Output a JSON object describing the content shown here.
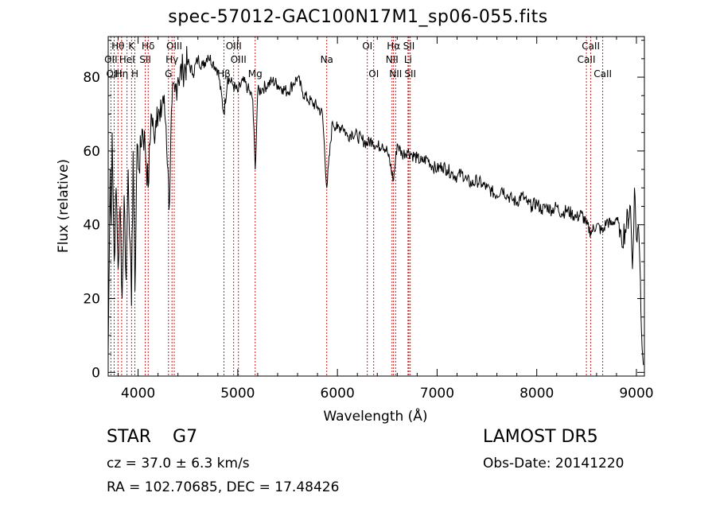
{
  "header": {
    "title": "spec-57012-GAC100N17M1_sp06-055.fits",
    "object_class": "STAR    G7",
    "survey": "LAMOST  DR5",
    "cz": "cz = 37.0 ± 6.3 km/s",
    "obs_date": "Obs-Date: 20141220",
    "radec": "RA = 102.70685, DEC =  17.48426"
  },
  "chart_data": {
    "type": "line",
    "title": "spec-57012-GAC100N17M1_sp06-055.fits",
    "xlabel": "Wavelength (Å)",
    "ylabel": "Flux (relative)",
    "xlim": [
      3700,
      9080
    ],
    "ylim": [
      -1,
      91
    ],
    "xticks": [
      4000,
      5000,
      6000,
      7000,
      8000,
      9000
    ],
    "yticks": [
      0,
      20,
      40,
      60,
      80
    ],
    "grid": false,
    "line_color": "#000000",
    "marker_color": "#cc0000",
    "series": [
      {
        "x": [
          3700,
          3710,
          3720,
          3730,
          3740,
          3760,
          3780,
          3800,
          3820,
          3840,
          3860,
          3880,
          3900,
          3920,
          3934,
          3950,
          3968,
          3990,
          4010,
          4040,
          4070,
          4101,
          4130,
          4160,
          4190,
          4220,
          4250,
          4280,
          4300,
          4310,
          4340,
          4370,
          4400,
          4450,
          4500,
          4550,
          4600,
          4650,
          4700,
          4750,
          4800,
          4861,
          4900,
          4950,
          5000,
          5050,
          5100,
          5150,
          5175,
          5200,
          5250,
          5300,
          5350,
          5400,
          5450,
          5500,
          5550,
          5600,
          5650,
          5700,
          5750,
          5800,
          5850,
          5893,
          5950,
          6000,
          6050,
          6100,
          6150,
          6200,
          6250,
          6300,
          6350,
          6400,
          6450,
          6500,
          6563,
          6600,
          6650,
          6700,
          6750,
          6800,
          6850,
          6900,
          6950,
          7000,
          7050,
          7100,
          7150,
          7200,
          7250,
          7300,
          7350,
          7400,
          7450,
          7500,
          7550,
          7600,
          7650,
          7700,
          7750,
          7800,
          7850,
          7900,
          7950,
          8000,
          8050,
          8100,
          8150,
          8200,
          8250,
          8300,
          8350,
          8400,
          8450,
          8498,
          8542,
          8600,
          8662,
          8700,
          8750,
          8800,
          8850,
          8900,
          8940,
          8960,
          8980,
          9000,
          9020,
          9040,
          9050,
          9070
        ],
        "y": [
          5,
          30,
          55,
          40,
          65,
          30,
          50,
          28,
          45,
          20,
          48,
          25,
          55,
          35,
          18,
          60,
          22,
          62,
          55,
          66,
          62,
          50,
          70,
          64,
          72,
          68,
          75,
          67,
          55,
          44,
          73,
          76,
          80,
          82,
          84,
          81,
          85,
          83,
          86,
          84,
          82,
          70,
          80,
          78,
          76,
          79,
          77,
          74,
          55,
          76,
          77,
          78,
          79,
          78,
          77,
          76,
          78,
          80,
          76,
          74,
          73,
          72,
          70,
          50,
          68,
          66,
          67,
          64,
          65,
          64,
          63,
          62,
          63,
          61,
          62,
          60,
          52,
          62,
          59,
          60,
          59,
          58,
          57,
          58,
          56,
          55,
          56,
          55,
          54,
          53,
          54,
          52,
          51,
          52,
          51,
          50,
          49,
          48,
          50,
          48,
          47,
          46,
          48,
          46,
          45,
          46,
          44,
          45,
          44,
          45,
          43,
          44,
          43,
          42,
          43,
          40,
          38,
          40,
          38,
          41,
          40,
          42,
          36,
          40,
          45,
          28,
          50,
          36,
          40,
          25,
          12,
          2
        ]
      }
    ],
    "lines": [
      {
        "label": "Hθ",
        "wave": 3798,
        "row": 0
      },
      {
        "label": "OII",
        "wave": 3727,
        "row": 1
      },
      {
        "label": "OIII",
        "wave": 3760,
        "row": 2
      },
      {
        "label": "Hη",
        "wave": 3835,
        "row": 2
      },
      {
        "label": "HeI",
        "wave": 3889,
        "row": 1
      },
      {
        "label": "K",
        "wave": 3934,
        "row": 0
      },
      {
        "label": "H",
        "wave": 3968,
        "row": 2
      },
      {
        "label": "SII",
        "wave": 4072,
        "row": 1
      },
      {
        "label": "Hδ",
        "wave": 4101,
        "row": 0
      },
      {
        "label": "OIII",
        "wave": 4363,
        "row": 0
      },
      {
        "label": "Hγ",
        "wave": 4340,
        "row": 1
      },
      {
        "label": "G",
        "wave": 4305,
        "row": 2
      },
      {
        "label": "OIII",
        "wave": 4959,
        "row": 0
      },
      {
        "label": "OIII",
        "wave": 5007,
        "row": 1
      },
      {
        "label": "Hβ",
        "wave": 4861,
        "row": 2
      },
      {
        "label": "Mg",
        "wave": 5175,
        "row": 2
      },
      {
        "label": "Na",
        "wave": 5893,
        "row": 1
      },
      {
        "label": "OI",
        "wave": 6300,
        "row": 0
      },
      {
        "label": "OI",
        "wave": 6364,
        "row": 2
      },
      {
        "label": "Hα",
        "wave": 6563,
        "row": 0
      },
      {
        "label": "NII",
        "wave": 6548,
        "row": 1
      },
      {
        "label": "NII",
        "wave": 6584,
        "row": 2
      },
      {
        "label": "SII",
        "wave": 6717,
        "row": 0
      },
      {
        "label": "Li",
        "wave": 6708,
        "row": 1
      },
      {
        "label": "SII",
        "wave": 6731,
        "row": 2
      },
      {
        "label": "CaII",
        "wave": 8542,
        "row": 0
      },
      {
        "label": "CaII",
        "wave": 8498,
        "row": 1
      },
      {
        "label": "CaII",
        "wave": 8662,
        "row": 2
      }
    ]
  }
}
